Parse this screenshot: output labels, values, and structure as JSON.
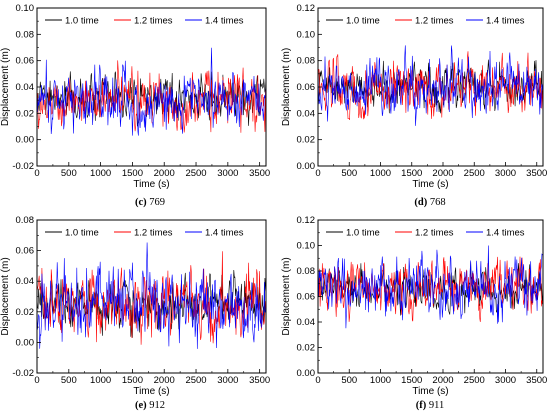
{
  "figure": {
    "panels": [
      {
        "id": "c",
        "caption_letter": "(c)",
        "caption_number": " 769",
        "ylabel": "Displacement (m)",
        "xlabel": "Time (s)"
      },
      {
        "id": "d",
        "caption_letter": "(d)",
        "caption_number": " 768",
        "ylabel": "Displacement (m)",
        "xlabel": "Time (s)"
      },
      {
        "id": "e",
        "caption_letter": "(e)",
        "caption_number": " 912",
        "ylabel": "Displacement (m)",
        "xlabel": "Time (s)"
      },
      {
        "id": "f",
        "caption_letter": "(f)",
        "caption_number": " 911",
        "ylabel": "Displacement (m)",
        "xlabel": "Time (s)"
      }
    ]
  },
  "chart_data": [
    {
      "type": "line",
      "panel": "c",
      "xlabel": "Time (s)",
      "ylabel": "Displacement (m)",
      "xlim": [
        0,
        3600
      ],
      "ylim": [
        -0.02,
        0.1
      ],
      "xticks": [
        0,
        500,
        1000,
        1500,
        2000,
        2500,
        3000,
        3500
      ],
      "yticks": [
        -0.02,
        0.0,
        0.02,
        0.04,
        0.06,
        0.08,
        0.1
      ],
      "ytick_labels": [
        "-0.02",
        "0.00",
        "0.02",
        "0.04",
        "0.06",
        "0.08",
        "0.10"
      ],
      "legend_position": "top",
      "series": [
        {
          "name": "1.0 time",
          "color": "#000000",
          "mean": 0.03,
          "spread": 0.008,
          "min": 0.01,
          "max": 0.052
        },
        {
          "name": "1.2 times",
          "color": "#ff0000",
          "mean": 0.03,
          "spread": 0.01,
          "min": 0.005,
          "max": 0.065
        },
        {
          "name": "1.4 times",
          "color": "#0000ff",
          "mean": 0.03,
          "spread": 0.011,
          "min": 0.003,
          "max": 0.07
        }
      ]
    },
    {
      "type": "line",
      "panel": "d",
      "xlabel": "Time (s)",
      "ylabel": "Displacement (m)",
      "xlim": [
        0,
        3600
      ],
      "ylim": [
        0.0,
        0.12
      ],
      "xticks": [
        0,
        500,
        1000,
        1500,
        2000,
        2500,
        3000,
        3500
      ],
      "yticks": [
        0.0,
        0.02,
        0.04,
        0.06,
        0.08,
        0.1,
        0.12
      ],
      "ytick_labels": [
        "0.00",
        "0.02",
        "0.04",
        "0.06",
        "0.08",
        "0.10",
        "0.12"
      ],
      "legend_position": "top",
      "series": [
        {
          "name": "1.0 time",
          "color": "#000000",
          "mean": 0.06,
          "spread": 0.008,
          "min": 0.04,
          "max": 0.082
        },
        {
          "name": "1.2 times",
          "color": "#ff0000",
          "mean": 0.06,
          "spread": 0.01,
          "min": 0.035,
          "max": 0.098
        },
        {
          "name": "1.4 times",
          "color": "#0000ff",
          "mean": 0.06,
          "spread": 0.011,
          "min": 0.03,
          "max": 0.102
        }
      ]
    },
    {
      "type": "line",
      "panel": "e",
      "xlabel": "Time (s)",
      "ylabel": "Displacement (m)",
      "xlim": [
        0,
        3600
      ],
      "ylim": [
        -0.02,
        0.08
      ],
      "xticks": [
        0,
        500,
        1000,
        1500,
        2000,
        2500,
        3000,
        3500
      ],
      "yticks": [
        -0.02,
        0.0,
        0.02,
        0.04,
        0.06,
        0.08
      ],
      "ytick_labels": [
        "-0.02",
        "0.00",
        "0.02",
        "0.04",
        "0.06",
        "0.08"
      ],
      "legend_position": "top",
      "series": [
        {
          "name": "1.0 time",
          "color": "#000000",
          "mean": 0.025,
          "spread": 0.008,
          "min": 0.003,
          "max": 0.048
        },
        {
          "name": "1.2 times",
          "color": "#ff0000",
          "mean": 0.025,
          "spread": 0.01,
          "min": -0.002,
          "max": 0.062
        },
        {
          "name": "1.4 times",
          "color": "#0000ff",
          "mean": 0.025,
          "spread": 0.011,
          "min": -0.005,
          "max": 0.066
        }
      ]
    },
    {
      "type": "line",
      "panel": "f",
      "xlabel": "Time (s)",
      "ylabel": "Displacement (m)",
      "xlim": [
        0,
        3600
      ],
      "ylim": [
        0.0,
        0.12
      ],
      "xticks": [
        0,
        500,
        1000,
        1500,
        2000,
        2500,
        3000,
        3500
      ],
      "yticks": [
        0.0,
        0.02,
        0.04,
        0.06,
        0.08,
        0.1,
        0.12
      ],
      "ytick_labels": [
        "0.00",
        "0.02",
        "0.04",
        "0.06",
        "0.08",
        "0.10",
        "0.12"
      ],
      "legend_position": "top",
      "series": [
        {
          "name": "1.0 time",
          "color": "#000000",
          "mean": 0.066,
          "spread": 0.008,
          "min": 0.045,
          "max": 0.088
        },
        {
          "name": "1.2 times",
          "color": "#ff0000",
          "mean": 0.066,
          "spread": 0.01,
          "min": 0.04,
          "max": 0.104
        },
        {
          "name": "1.4 times",
          "color": "#0000ff",
          "mean": 0.066,
          "spread": 0.011,
          "min": 0.035,
          "max": 0.108
        }
      ]
    }
  ]
}
